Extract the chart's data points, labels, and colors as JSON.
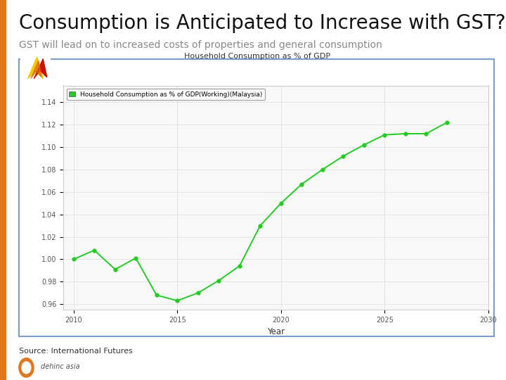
{
  "title": "Consumption is Anticipated to Increase with GST?",
  "subtitle": "GST will lead on to increased costs of properties and general consumption",
  "source": "Source: International Futures",
  "chart_title": "Household Consumption as % of GDP",
  "legend_label": "Household Consumption as % of GDP(Working)(Malaysia)",
  "xlabel": "Year",
  "years": [
    2010,
    2011,
    2012,
    2013,
    2014,
    2015,
    2016,
    2017,
    2018,
    2019,
    2020,
    2021,
    2022,
    2023,
    2024,
    2025,
    2026,
    2027,
    2028
  ],
  "values": [
    1.0,
    1.008,
    0.991,
    1.001,
    0.968,
    0.963,
    0.97,
    0.981,
    0.994,
    1.03,
    1.05,
    1.067,
    1.08,
    1.092,
    1.102,
    1.111,
    1.112,
    1.112,
    1.122
  ],
  "line_color": "#22cc22",
  "marker_color": "#22cc22",
  "bg_color": "#ffffff",
  "chart_bg_color": "#f8f8f8",
  "border_color": "#7b9ec8",
  "title_fontsize": 20,
  "subtitle_fontsize": 10,
  "orange_bar_color": "#e07820",
  "ytick_labels": [
    "0.96",
    "0.98",
    "1.00",
    "1.02",
    "1.04",
    "1.06",
    "1.08",
    "1.10",
    "1.12",
    "1.14"
  ],
  "ytick_values": [
    0.96,
    0.98,
    1.0,
    1.02,
    1.04,
    1.06,
    1.08,
    1.1,
    1.12,
    1.14
  ],
  "xtick_positions": [
    2010,
    2015,
    2020,
    2025,
    2030
  ],
  "xtick_labels": [
    "2010",
    "2015",
    "2020",
    "2025",
    "2030"
  ],
  "ylim_low": 0.955,
  "ylim_high": 1.155,
  "xlim_low": 2009.5,
  "xlim_high": 2030.0
}
